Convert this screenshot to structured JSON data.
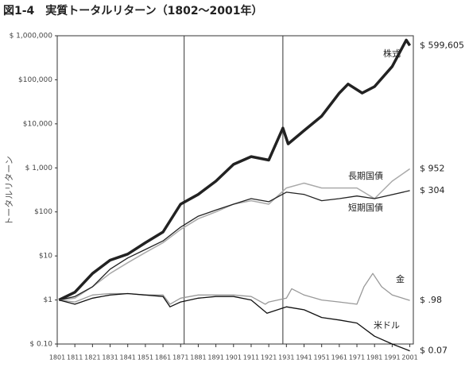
{
  "chart_data": {
    "type": "line",
    "title": "図1-4　実質トータルリターン（1802～2001年）",
    "ylabel": "トータルリターン",
    "yscale": "log",
    "xlim": [
      1801,
      2003
    ],
    "xticks": [
      1801,
      1811,
      1821,
      1831,
      1841,
      1851,
      1861,
      1871,
      1881,
      1891,
      1901,
      1911,
      1921,
      1931,
      1941,
      1951,
      1961,
      1971,
      1981,
      1991,
      2001
    ],
    "ylim": [
      0.1,
      1000000
    ],
    "yticks": [
      {
        "value": 0.1,
        "label": "$ 0.10"
      },
      {
        "value": 1,
        "label": "$1"
      },
      {
        "value": 10,
        "label": "$10"
      },
      {
        "value": 100,
        "label": "$100"
      },
      {
        "value": 1000,
        "label": "$ 1,000"
      },
      {
        "value": 10000,
        "label": "$10,000"
      },
      {
        "value": 100000,
        "label": "$100,000"
      },
      {
        "value": 1000000,
        "label": "$ 1,000,000"
      }
    ],
    "period_lines": [
      1873,
      1929
    ],
    "series": [
      {
        "name": "株式",
        "color": "#222222",
        "width": 3.5,
        "end_label": "$ 599,605",
        "x": [
          1802,
          1811,
          1821,
          1831,
          1841,
          1851,
          1861,
          1871,
          1881,
          1891,
          1901,
          1911,
          1921,
          1929,
          1932,
          1941,
          1951,
          1961,
          1966,
          1974,
          1981,
          1991,
          1999,
          2001
        ],
        "values": [
          1,
          1.5,
          4,
          8,
          11,
          20,
          35,
          150,
          250,
          500,
          1200,
          1800,
          1500,
          8000,
          3500,
          7000,
          15000,
          50000,
          80000,
          50000,
          70000,
          200000,
          800000,
          599605
        ]
      },
      {
        "name": "長期国債",
        "color": "#aaaaaa",
        "width": 1.5,
        "end_label": "$ 952",
        "x": [
          1802,
          1811,
          1821,
          1831,
          1841,
          1851,
          1861,
          1871,
          1881,
          1891,
          1901,
          1911,
          1921,
          1931,
          1941,
          1951,
          1961,
          1971,
          1981,
          1991,
          2001
        ],
        "values": [
          1,
          1.1,
          2,
          4,
          7,
          12,
          20,
          40,
          70,
          100,
          150,
          180,
          150,
          350,
          450,
          350,
          350,
          350,
          200,
          500,
          952
        ]
      },
      {
        "name": "短期国債",
        "color": "#222222",
        "width": 1.3,
        "end_label": "$ 304",
        "x": [
          1802,
          1811,
          1821,
          1831,
          1841,
          1851,
          1861,
          1871,
          1881,
          1891,
          1901,
          1911,
          1921,
          1931,
          1941,
          1951,
          1961,
          1971,
          1981,
          2001
        ],
        "values": [
          1,
          1.2,
          2,
          5,
          9,
          14,
          22,
          45,
          80,
          110,
          150,
          200,
          170,
          280,
          250,
          180,
          200,
          230,
          200,
          304
        ]
      },
      {
        "name": "金",
        "color": "#999999",
        "width": 1.3,
        "end_label": "$ .98",
        "x": [
          1802,
          1811,
          1821,
          1831,
          1841,
          1851,
          1861,
          1865,
          1871,
          1881,
          1891,
          1901,
          1911,
          1919,
          1921,
          1931,
          1934,
          1941,
          1951,
          1961,
          1971,
          1975,
          1980,
          1985,
          1991,
          2001
        ],
        "values": [
          1,
          0.9,
          1.3,
          1.4,
          1.4,
          1.3,
          1.3,
          0.8,
          1.1,
          1.3,
          1.3,
          1.3,
          1.2,
          0.8,
          0.9,
          1.1,
          1.8,
          1.3,
          1,
          0.9,
          0.8,
          2,
          4,
          2,
          1.3,
          0.98
        ]
      },
      {
        "name": "米ドル",
        "color": "#111111",
        "width": 1.3,
        "end_label": "$ 0.07",
        "x": [
          1802,
          1811,
          1821,
          1831,
          1841,
          1851,
          1861,
          1865,
          1871,
          1881,
          1891,
          1901,
          1911,
          1920,
          1931,
          1941,
          1951,
          1961,
          1971,
          1981,
          1991,
          2001
        ],
        "values": [
          1,
          0.8,
          1.1,
          1.3,
          1.4,
          1.3,
          1.2,
          0.7,
          0.9,
          1.1,
          1.2,
          1.2,
          1,
          0.5,
          0.7,
          0.6,
          0.4,
          0.35,
          0.3,
          0.15,
          0.1,
          0.07
        ]
      }
    ]
  }
}
